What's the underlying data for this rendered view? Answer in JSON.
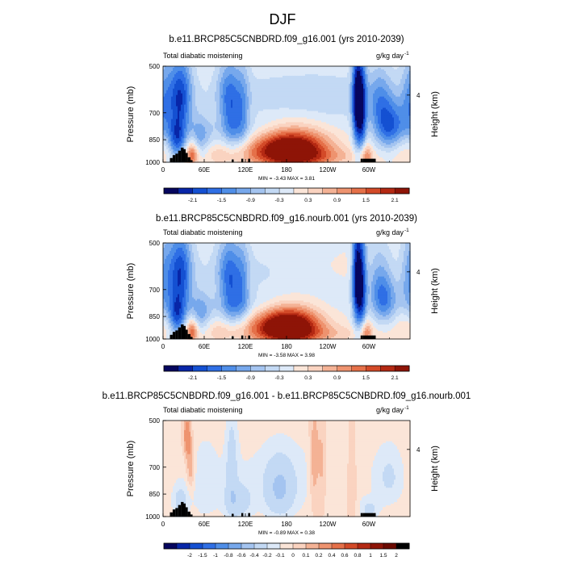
{
  "figure_title": "DJF",
  "chart_data": [
    {
      "type": "heatmap",
      "panel": "top",
      "title": "b.e11.BRCP85C5CNBDRD.f09_g16.001 (yrs 2010-2039)",
      "left_label": "Total diabatic moistening",
      "units_label": "g/kg day",
      "units_exponent": "-1",
      "ylabel": "Pressure (mb)",
      "right_ylabel": "Height (km)",
      "right_ticks": [
        "4"
      ],
      "right_tick_pressure": 616,
      "x_range": [
        0,
        360
      ],
      "x_ticks": [
        {
          "lon": 0,
          "label": "0"
        },
        {
          "lon": 60,
          "label": "60E"
        },
        {
          "lon": 120,
          "label": "120E"
        },
        {
          "lon": 180,
          "label": "180"
        },
        {
          "lon": 240,
          "label": "120W"
        },
        {
          "lon": 300,
          "label": "60W"
        }
      ],
      "y_range": [
        500,
        1000
      ],
      "y_ticks": [
        500,
        700,
        850,
        1000
      ],
      "stats_text": "MIN =   -3.43  MAX =   3.81",
      "min": -3.43,
      "max": 3.81,
      "colorbar": {
        "levels": [
          -2.4,
          -2.1,
          -1.8,
          -1.5,
          -1.2,
          -0.9,
          -0.6,
          -0.3,
          0,
          0.3,
          0.6,
          0.9,
          1.2,
          1.5,
          1.8,
          2.1
        ],
        "labels": [
          "-2.1",
          "-1.5",
          "-0.9",
          "-0.3",
          "0.3",
          "0.9",
          "1.5",
          "2.1"
        ],
        "label_values": [
          -2.1,
          -1.5,
          -0.9,
          -0.3,
          0.3,
          0.9,
          1.5,
          2.1
        ]
      },
      "features": [
        {
          "lon": 195,
          "p": 912,
          "slon": 34,
          "sp": 95,
          "amp": 2.6
        },
        {
          "lon": 160,
          "p": 905,
          "slon": 30,
          "sp": 80,
          "amp": 1.0
        },
        {
          "lon": 150,
          "p": 610,
          "slon": 100,
          "sp": 80,
          "amp": -0.35
        },
        {
          "lon": 120,
          "p": 790,
          "slon": 80,
          "sp": 60,
          "amp": -0.45
        },
        {
          "lon": 25,
          "p": 620,
          "slon": 12,
          "sp": 130,
          "amp": -1.9
        },
        {
          "lon": 20,
          "p": 860,
          "slon": 9,
          "sp": 90,
          "amp": -1.6
        },
        {
          "lon": 42,
          "p": 950,
          "slon": 6,
          "sp": 60,
          "amp": 1.4
        },
        {
          "lon": 55,
          "p": 850,
          "slon": 10,
          "sp": 100,
          "amp": -0.8
        },
        {
          "lon": 90,
          "p": 950,
          "slon": 40,
          "sp": 50,
          "amp": 0.5
        },
        {
          "lon": 100,
          "p": 700,
          "slon": 8,
          "sp": 160,
          "amp": -0.9
        },
        {
          "lon": 115,
          "p": 690,
          "slon": 8,
          "sp": 160,
          "amp": -1.0
        },
        {
          "lon": 90,
          "p": 620,
          "slon": 10,
          "sp": 120,
          "amp": -0.8
        },
        {
          "lon": 282,
          "p": 640,
          "slon": 5,
          "sp": 170,
          "amp": -2.2
        },
        {
          "lon": 290,
          "p": 690,
          "slon": 5,
          "sp": 200,
          "amp": -1.8
        },
        {
          "lon": 295,
          "p": 950,
          "slon": 6,
          "sp": 60,
          "amp": 1.2
        },
        {
          "lon": 330,
          "p": 770,
          "slon": 16,
          "sp": 95,
          "amp": -1.7
        },
        {
          "lon": 315,
          "p": 620,
          "slon": 14,
          "sp": 100,
          "amp": -0.9
        },
        {
          "lon": 240,
          "p": 960,
          "slon": 55,
          "sp": 40,
          "amp": 0.4
        },
        {
          "lon": 250,
          "p": 640,
          "slon": 60,
          "sp": 90,
          "amp": -0.3
        },
        {
          "lon": 0,
          "p": 650,
          "slon": 10,
          "sp": 150,
          "amp": -1.0
        },
        {
          "lon": 358,
          "p": 900,
          "slon": 14,
          "sp": 70,
          "amp": 0.4
        }
      ]
    },
    {
      "type": "heatmap",
      "panel": "middle",
      "title": "b.e11.BRCP85C5CNBDRD.f09_g16.nourb.001 (yrs 2010-2039)",
      "left_label": "Total diabatic moistening",
      "units_label": "g/kg day",
      "units_exponent": "-1",
      "ylabel": "Pressure (mb)",
      "right_ylabel": "Height (km)",
      "right_ticks": [
        "4"
      ],
      "right_tick_pressure": 616,
      "x_range": [
        0,
        360
      ],
      "x_ticks": [
        {
          "lon": 0,
          "label": "0"
        },
        {
          "lon": 60,
          "label": "60E"
        },
        {
          "lon": 120,
          "label": "120E"
        },
        {
          "lon": 180,
          "label": "180"
        },
        {
          "lon": 240,
          "label": "120W"
        },
        {
          "lon": 300,
          "label": "60W"
        }
      ],
      "y_range": [
        500,
        1000
      ],
      "y_ticks": [
        500,
        700,
        850,
        1000
      ],
      "stats_text": "MIN =   -3.58  MAX =   3.98",
      "min": -3.58,
      "max": 3.98,
      "colorbar": {
        "levels": [
          -2.4,
          -2.1,
          -1.8,
          -1.5,
          -1.2,
          -0.9,
          -0.6,
          -0.3,
          0,
          0.3,
          0.6,
          0.9,
          1.2,
          1.5,
          1.8,
          2.1
        ],
        "labels": [
          "-2.1",
          "-1.5",
          "-0.9",
          "-0.3",
          "0.3",
          "0.9",
          "1.5",
          "2.1"
        ],
        "label_values": [
          -2.1,
          -1.5,
          -0.9,
          -0.3,
          0.3,
          0.9,
          1.5,
          2.1
        ]
      },
      "features": [
        {
          "lon": 188,
          "p": 915,
          "slon": 30,
          "sp": 90,
          "amp": 2.7
        },
        {
          "lon": 160,
          "p": 905,
          "slon": 30,
          "sp": 80,
          "amp": 1.0
        },
        {
          "lon": 150,
          "p": 610,
          "slon": 100,
          "sp": 80,
          "amp": -0.4
        },
        {
          "lon": 120,
          "p": 790,
          "slon": 80,
          "sp": 60,
          "amp": -0.5
        },
        {
          "lon": 25,
          "p": 620,
          "slon": 12,
          "sp": 130,
          "amp": -1.9
        },
        {
          "lon": 20,
          "p": 860,
          "slon": 9,
          "sp": 90,
          "amp": -1.6
        },
        {
          "lon": 42,
          "p": 950,
          "slon": 6,
          "sp": 60,
          "amp": 1.4
        },
        {
          "lon": 55,
          "p": 850,
          "slon": 10,
          "sp": 100,
          "amp": -0.8
        },
        {
          "lon": 90,
          "p": 950,
          "slon": 40,
          "sp": 50,
          "amp": 0.5
        },
        {
          "lon": 100,
          "p": 700,
          "slon": 8,
          "sp": 160,
          "amp": -0.9
        },
        {
          "lon": 115,
          "p": 690,
          "slon": 8,
          "sp": 160,
          "amp": -1.0
        },
        {
          "lon": 90,
          "p": 620,
          "slon": 10,
          "sp": 120,
          "amp": -0.8
        },
        {
          "lon": 282,
          "p": 640,
          "slon": 5,
          "sp": 170,
          "amp": -2.3
        },
        {
          "lon": 290,
          "p": 690,
          "slon": 5,
          "sp": 200,
          "amp": -1.8
        },
        {
          "lon": 295,
          "p": 950,
          "slon": 6,
          "sp": 60,
          "amp": 1.2
        },
        {
          "lon": 322,
          "p": 760,
          "slon": 14,
          "sp": 90,
          "amp": -1.3
        },
        {
          "lon": 315,
          "p": 620,
          "slon": 14,
          "sp": 100,
          "amp": -0.8
        },
        {
          "lon": 240,
          "p": 960,
          "slon": 55,
          "sp": 40,
          "amp": 0.4
        },
        {
          "lon": 250,
          "p": 600,
          "slon": 70,
          "sp": 60,
          "amp": 0.25
        },
        {
          "lon": 0,
          "p": 650,
          "slon": 10,
          "sp": 150,
          "amp": -1.0
        },
        {
          "lon": 358,
          "p": 900,
          "slon": 14,
          "sp": 70,
          "amp": 0.4
        }
      ]
    },
    {
      "type": "heatmap",
      "panel": "bottom",
      "title": "b.e11.BRCP85C5CNBDRD.f09_g16.001 - b.e11.BRCP85C5CNBDRD.f09_g16.nourb.001",
      "left_label": "Total diabatic moistening",
      "units_label": "g/kg day",
      "units_exponent": "-1",
      "ylabel": "Pressure (mb)",
      "right_ylabel": "Height (km)",
      "right_ticks": [
        "4"
      ],
      "right_tick_pressure": 616,
      "x_range": [
        0,
        360
      ],
      "x_ticks": [
        {
          "lon": 0,
          "label": "0"
        },
        {
          "lon": 60,
          "label": "60E"
        },
        {
          "lon": 120,
          "label": "120E"
        },
        {
          "lon": 180,
          "label": "180"
        },
        {
          "lon": 240,
          "label": "120W"
        },
        {
          "lon": 300,
          "label": "60W"
        }
      ],
      "y_range": [
        500,
        1000
      ],
      "y_ticks": [
        500,
        700,
        850,
        1000
      ],
      "stats_text": "MIN =   -0.89  MAX =   0.38",
      "min": -0.89,
      "max": 0.38,
      "colorbar": {
        "levels": [
          -2.5,
          -2,
          -1.5,
          -1,
          -0.8,
          -0.6,
          -0.4,
          -0.2,
          -0.1,
          0,
          0.1,
          0.2,
          0.4,
          0.6,
          0.8,
          1,
          1.5,
          2
        ],
        "labels": [
          "-2",
          "-1.5",
          "-1",
          "-0.8",
          "-0.6",
          "-0.4",
          "-0.2",
          "-0.1",
          "0",
          "0.1",
          "0.2",
          "0.4",
          "0.6",
          "0.8",
          "1",
          "1.5",
          "2"
        ],
        "label_values": [
          -2,
          -1.5,
          -1,
          -0.8,
          -0.6,
          -0.4,
          -0.2,
          -0.1,
          0,
          0.1,
          0.2,
          0.4,
          0.6,
          0.8,
          1,
          1.5,
          2
        ]
      },
      "features": [
        {
          "lon": 180,
          "p": 750,
          "slon": 110,
          "sp": 200,
          "amp": -0.12
        },
        {
          "lon": 170,
          "p": 820,
          "slon": 15,
          "sp": 120,
          "amp": -0.35
        },
        {
          "lon": 35,
          "p": 560,
          "slon": 4,
          "sp": 60,
          "amp": 0.35
        },
        {
          "lon": 40,
          "p": 700,
          "slon": 4,
          "sp": 80,
          "amp": 0.25
        },
        {
          "lon": 25,
          "p": 900,
          "slon": 8,
          "sp": 80,
          "amp": -0.25
        },
        {
          "lon": 100,
          "p": 700,
          "slon": 6,
          "sp": 200,
          "amp": -0.22
        },
        {
          "lon": 110,
          "p": 900,
          "slon": 14,
          "sp": 80,
          "amp": -0.25
        },
        {
          "lon": 220,
          "p": 680,
          "slon": 5,
          "sp": 180,
          "amp": 0.25
        },
        {
          "lon": 232,
          "p": 700,
          "slon": 5,
          "sp": 180,
          "amp": 0.2
        },
        {
          "lon": 275,
          "p": 800,
          "slon": 6,
          "sp": 200,
          "amp": 0.15
        },
        {
          "lon": 300,
          "p": 950,
          "slon": 10,
          "sp": 50,
          "amp": -0.2
        },
        {
          "lon": 330,
          "p": 750,
          "slon": 15,
          "sp": 120,
          "amp": -0.18
        },
        {
          "lon": 60,
          "p": 800,
          "slon": 15,
          "sp": 200,
          "amp": -0.1
        }
      ]
    }
  ],
  "topography": [
    {
      "lon0": 10,
      "lon1": 14,
      "p": 970
    },
    {
      "lon0": 14,
      "lon1": 18,
      "p": 950
    },
    {
      "lon0": 18,
      "lon1": 22,
      "p": 940
    },
    {
      "lon0": 22,
      "lon1": 26,
      "p": 920
    },
    {
      "lon0": 26,
      "lon1": 30,
      "p": 900
    },
    {
      "lon0": 30,
      "lon1": 33,
      "p": 910
    },
    {
      "lon0": 33,
      "lon1": 36,
      "p": 935
    },
    {
      "lon0": 36,
      "lon1": 40,
      "p": 965
    },
    {
      "lon0": 40,
      "lon1": 43,
      "p": 985
    },
    {
      "lon0": 100,
      "lon1": 103,
      "p": 980
    },
    {
      "lon0": 114,
      "lon1": 117,
      "p": 975
    },
    {
      "lon0": 124,
      "lon1": 127,
      "p": 975
    },
    {
      "lon0": 288,
      "lon1": 291,
      "p": 975
    },
    {
      "lon0": 291,
      "lon1": 310,
      "p": 975
    }
  ]
}
